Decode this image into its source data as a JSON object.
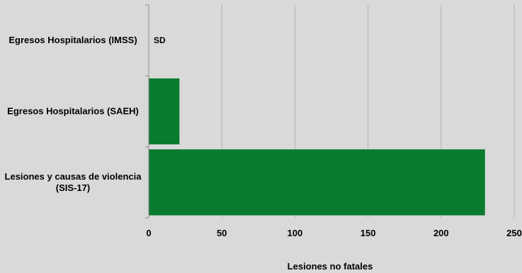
{
  "chart_data": {
    "type": "bar",
    "orientation": "horizontal",
    "categories": [
      "Egresos Hospitalarios (IMSS)",
      "Egresos Hospitalarios (SAEH)",
      "Lesiones y causas de violencia (SIS-17)"
    ],
    "category_label_lines": [
      [
        "Egresos Hospitalarios (IMSS)"
      ],
      [
        "Egresos Hospitalarios (SAEH)"
      ],
      [
        "Lesiones y causas de violencia",
        "(SIS-17)"
      ]
    ],
    "values": [
      null,
      21,
      230
    ],
    "data_labels": [
      "SD",
      "",
      ""
    ],
    "xlabel": "Lesiones no fatales",
    "xlim": [
      0,
      250
    ],
    "xticks": [
      0,
      50,
      100,
      150,
      200,
      250
    ],
    "grid": true,
    "bar_color": "#0a7a2f",
    "background_color": "#d9d9d9",
    "grid_color": "#b0b0b0"
  }
}
